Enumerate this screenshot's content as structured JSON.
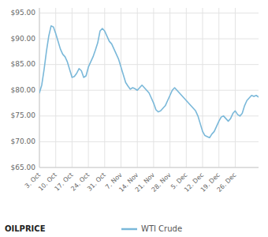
{
  "chart_data": {
    "type": "line",
    "categories": [
      "3. Oct",
      null,
      null,
      null,
      null,
      null,
      null,
      "10. Oct",
      null,
      null,
      null,
      null,
      null,
      null,
      "17. Oct",
      null,
      null,
      null,
      null,
      null,
      null,
      "24. Oct",
      null,
      null,
      null,
      null,
      null,
      null,
      "31. Oct",
      null,
      null,
      null,
      null,
      null,
      null,
      "7. Nov",
      null,
      null,
      null,
      null,
      null,
      null,
      "14. Nov",
      null,
      null,
      null,
      null,
      null,
      null,
      "21. Nov",
      null,
      null,
      null,
      null,
      null,
      null,
      "28. Nov",
      null,
      null,
      null,
      null,
      null,
      null,
      "5. Dec",
      null,
      null,
      null,
      null,
      null,
      null,
      "12. Dec",
      null,
      null,
      null,
      null,
      null,
      null,
      "19. Dec",
      null,
      null,
      null,
      null,
      null,
      null,
      "26. Dec",
      null,
      null,
      null,
      null,
      null,
      null,
      null,
      null,
      null,
      null
    ],
    "series": [
      {
        "name": "WTI Crude",
        "color": "#7ab8d9",
        "values": [
          79.5,
          81.0,
          84.0,
          87.5,
          90.5,
          92.5,
          92.3,
          91.0,
          89.5,
          88.0,
          87.0,
          86.5,
          85.5,
          84.0,
          82.5,
          82.7,
          83.3,
          84.2,
          83.8,
          82.5,
          82.8,
          84.5,
          85.5,
          86.5,
          87.8,
          89.2,
          91.5,
          92.0,
          91.5,
          90.5,
          89.5,
          89.0,
          88.0,
          87.0,
          86.0,
          84.5,
          83.0,
          81.5,
          80.8,
          80.2,
          80.5,
          80.3,
          80.0,
          80.5,
          81.0,
          80.5,
          80.0,
          79.5,
          78.5,
          77.5,
          76.2,
          75.8,
          76.0,
          76.5,
          77.0,
          78.0,
          79.0,
          80.0,
          80.5,
          80.0,
          79.5,
          79.0,
          78.5,
          78.0,
          77.5,
          77.0,
          76.5,
          76.0,
          75.0,
          73.5,
          72.0,
          71.2,
          71.0,
          70.8,
          71.5,
          72.0,
          73.0,
          74.0,
          74.8,
          75.0,
          74.5,
          74.0,
          74.5,
          75.5,
          76.0,
          75.3,
          75.0,
          75.5,
          77.0,
          78.0,
          78.5,
          79.0,
          78.8,
          79.0,
          78.7
        ]
      }
    ],
    "ylim": [
      65.0,
      96.0
    ],
    "yticks": [
      {
        "value": 65.0,
        "label": "$65.00"
      },
      {
        "value": 70.0,
        "label": "$70.00"
      },
      {
        "value": 75.0,
        "label": "$75.00"
      },
      {
        "value": 80.0,
        "label": "$80.00"
      },
      {
        "value": 85.0,
        "label": "$85.00"
      },
      {
        "value": 90.0,
        "label": "$90.00"
      },
      {
        "value": 95.0,
        "label": "$95.00"
      }
    ],
    "grid": true,
    "legend": "bottom",
    "annotations": [
      "OILPRICE"
    ]
  }
}
